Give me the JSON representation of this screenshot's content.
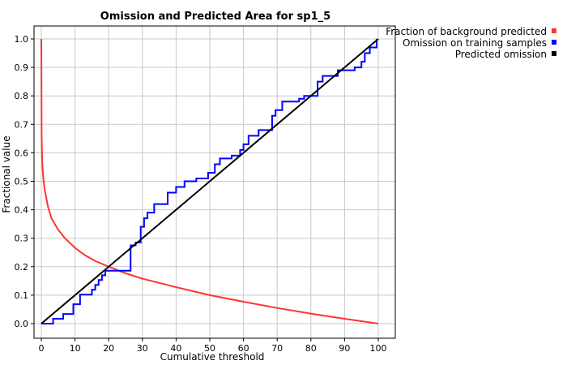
{
  "chart_data": {
    "type": "line",
    "title": "Omission and Predicted Area for sp1_5",
    "xlabel": "Cumulative threshold",
    "ylabel": "Fractional value",
    "xlim": [
      0,
      100
    ],
    "ylim": [
      0,
      1.0
    ],
    "xticks": [
      "0",
      "10",
      "20",
      "30",
      "40",
      "50",
      "60",
      "70",
      "80",
      "90",
      "100"
    ],
    "yticks": [
      "0.0",
      "0.1",
      "0.2",
      "0.3",
      "0.4",
      "0.5",
      "0.6",
      "0.7",
      "0.8",
      "0.9",
      "1.0"
    ],
    "grid": true,
    "legend_position": "outside-top-right",
    "series": [
      {
        "name": "Fraction of background predicted",
        "color": "#ff3333",
        "step": false,
        "x": [
          0,
          0.1,
          0.3,
          0.6,
          1,
          2,
          3,
          5,
          7,
          10,
          13,
          16,
          20,
          25,
          30,
          40,
          50,
          60,
          70,
          80,
          90,
          100
        ],
        "y": [
          1.0,
          0.65,
          0.56,
          0.51,
          0.47,
          0.41,
          0.37,
          0.33,
          0.3,
          0.266,
          0.24,
          0.22,
          0.2,
          0.177,
          0.158,
          0.128,
          0.1,
          0.077,
          0.055,
          0.035,
          0.017,
          0.0
        ]
      },
      {
        "name": "Omission on training samples",
        "color": "#0000ff",
        "step": true,
        "x": [
          0,
          3.5,
          6.5,
          9.5,
          11.5,
          15,
          16,
          17,
          18,
          19,
          21,
          26.5,
          28,
          29.5,
          30.5,
          31.5,
          33.5,
          37.5,
          40,
          42.5,
          46,
          49.5,
          51.5,
          53,
          56.5,
          59,
          60,
          61.5,
          64.5,
          68.5,
          69.5,
          71.5,
          76.5,
          78,
          82,
          83.5,
          88,
          93,
          95,
          96,
          97.5,
          99.5
        ],
        "y": [
          0.0,
          0.017,
          0.034,
          0.068,
          0.102,
          0.119,
          0.136,
          0.153,
          0.17,
          0.186,
          0.186,
          0.275,
          0.285,
          0.34,
          0.37,
          0.39,
          0.42,
          0.46,
          0.48,
          0.5,
          0.51,
          0.53,
          0.56,
          0.58,
          0.59,
          0.61,
          0.63,
          0.66,
          0.68,
          0.73,
          0.75,
          0.78,
          0.79,
          0.8,
          0.85,
          0.87,
          0.89,
          0.9,
          0.92,
          0.95,
          0.97,
          1.0
        ]
      },
      {
        "name": "Predicted omission",
        "color": "#000000",
        "step": false,
        "x": [
          0,
          100
        ],
        "y": [
          0.0,
          1.0
        ]
      }
    ]
  }
}
